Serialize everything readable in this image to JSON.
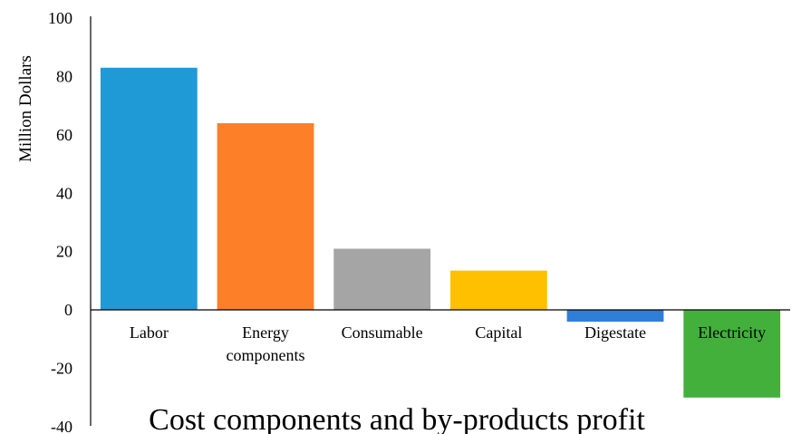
{
  "chart_data": {
    "type": "bar",
    "title": "Cost components and by-products profit",
    "xlabel": "",
    "ylabel": "Million Dollars",
    "ylim": [
      -40,
      100
    ],
    "y_ticks": [
      100,
      80,
      60,
      40,
      20,
      0,
      -20,
      -40
    ],
    "grid": false,
    "legend": "none",
    "categories": [
      "Labor",
      "Energy components",
      "Consumable",
      "Capital",
      "Digestate",
      "Electricity"
    ],
    "category_lines": [
      [
        "Labor"
      ],
      [
        "Energy",
        "components"
      ],
      [
        "Consumable"
      ],
      [
        "Capital"
      ],
      [
        "Digestate"
      ],
      [
        "Electricity"
      ]
    ],
    "values": [
      83,
      64,
      21,
      13.5,
      -4,
      -30
    ],
    "colors": [
      "#1f9ad6",
      "#fd7f28",
      "#a5a5a5",
      "#ffc000",
      "#2f7ed8",
      "#43b03c"
    ]
  }
}
